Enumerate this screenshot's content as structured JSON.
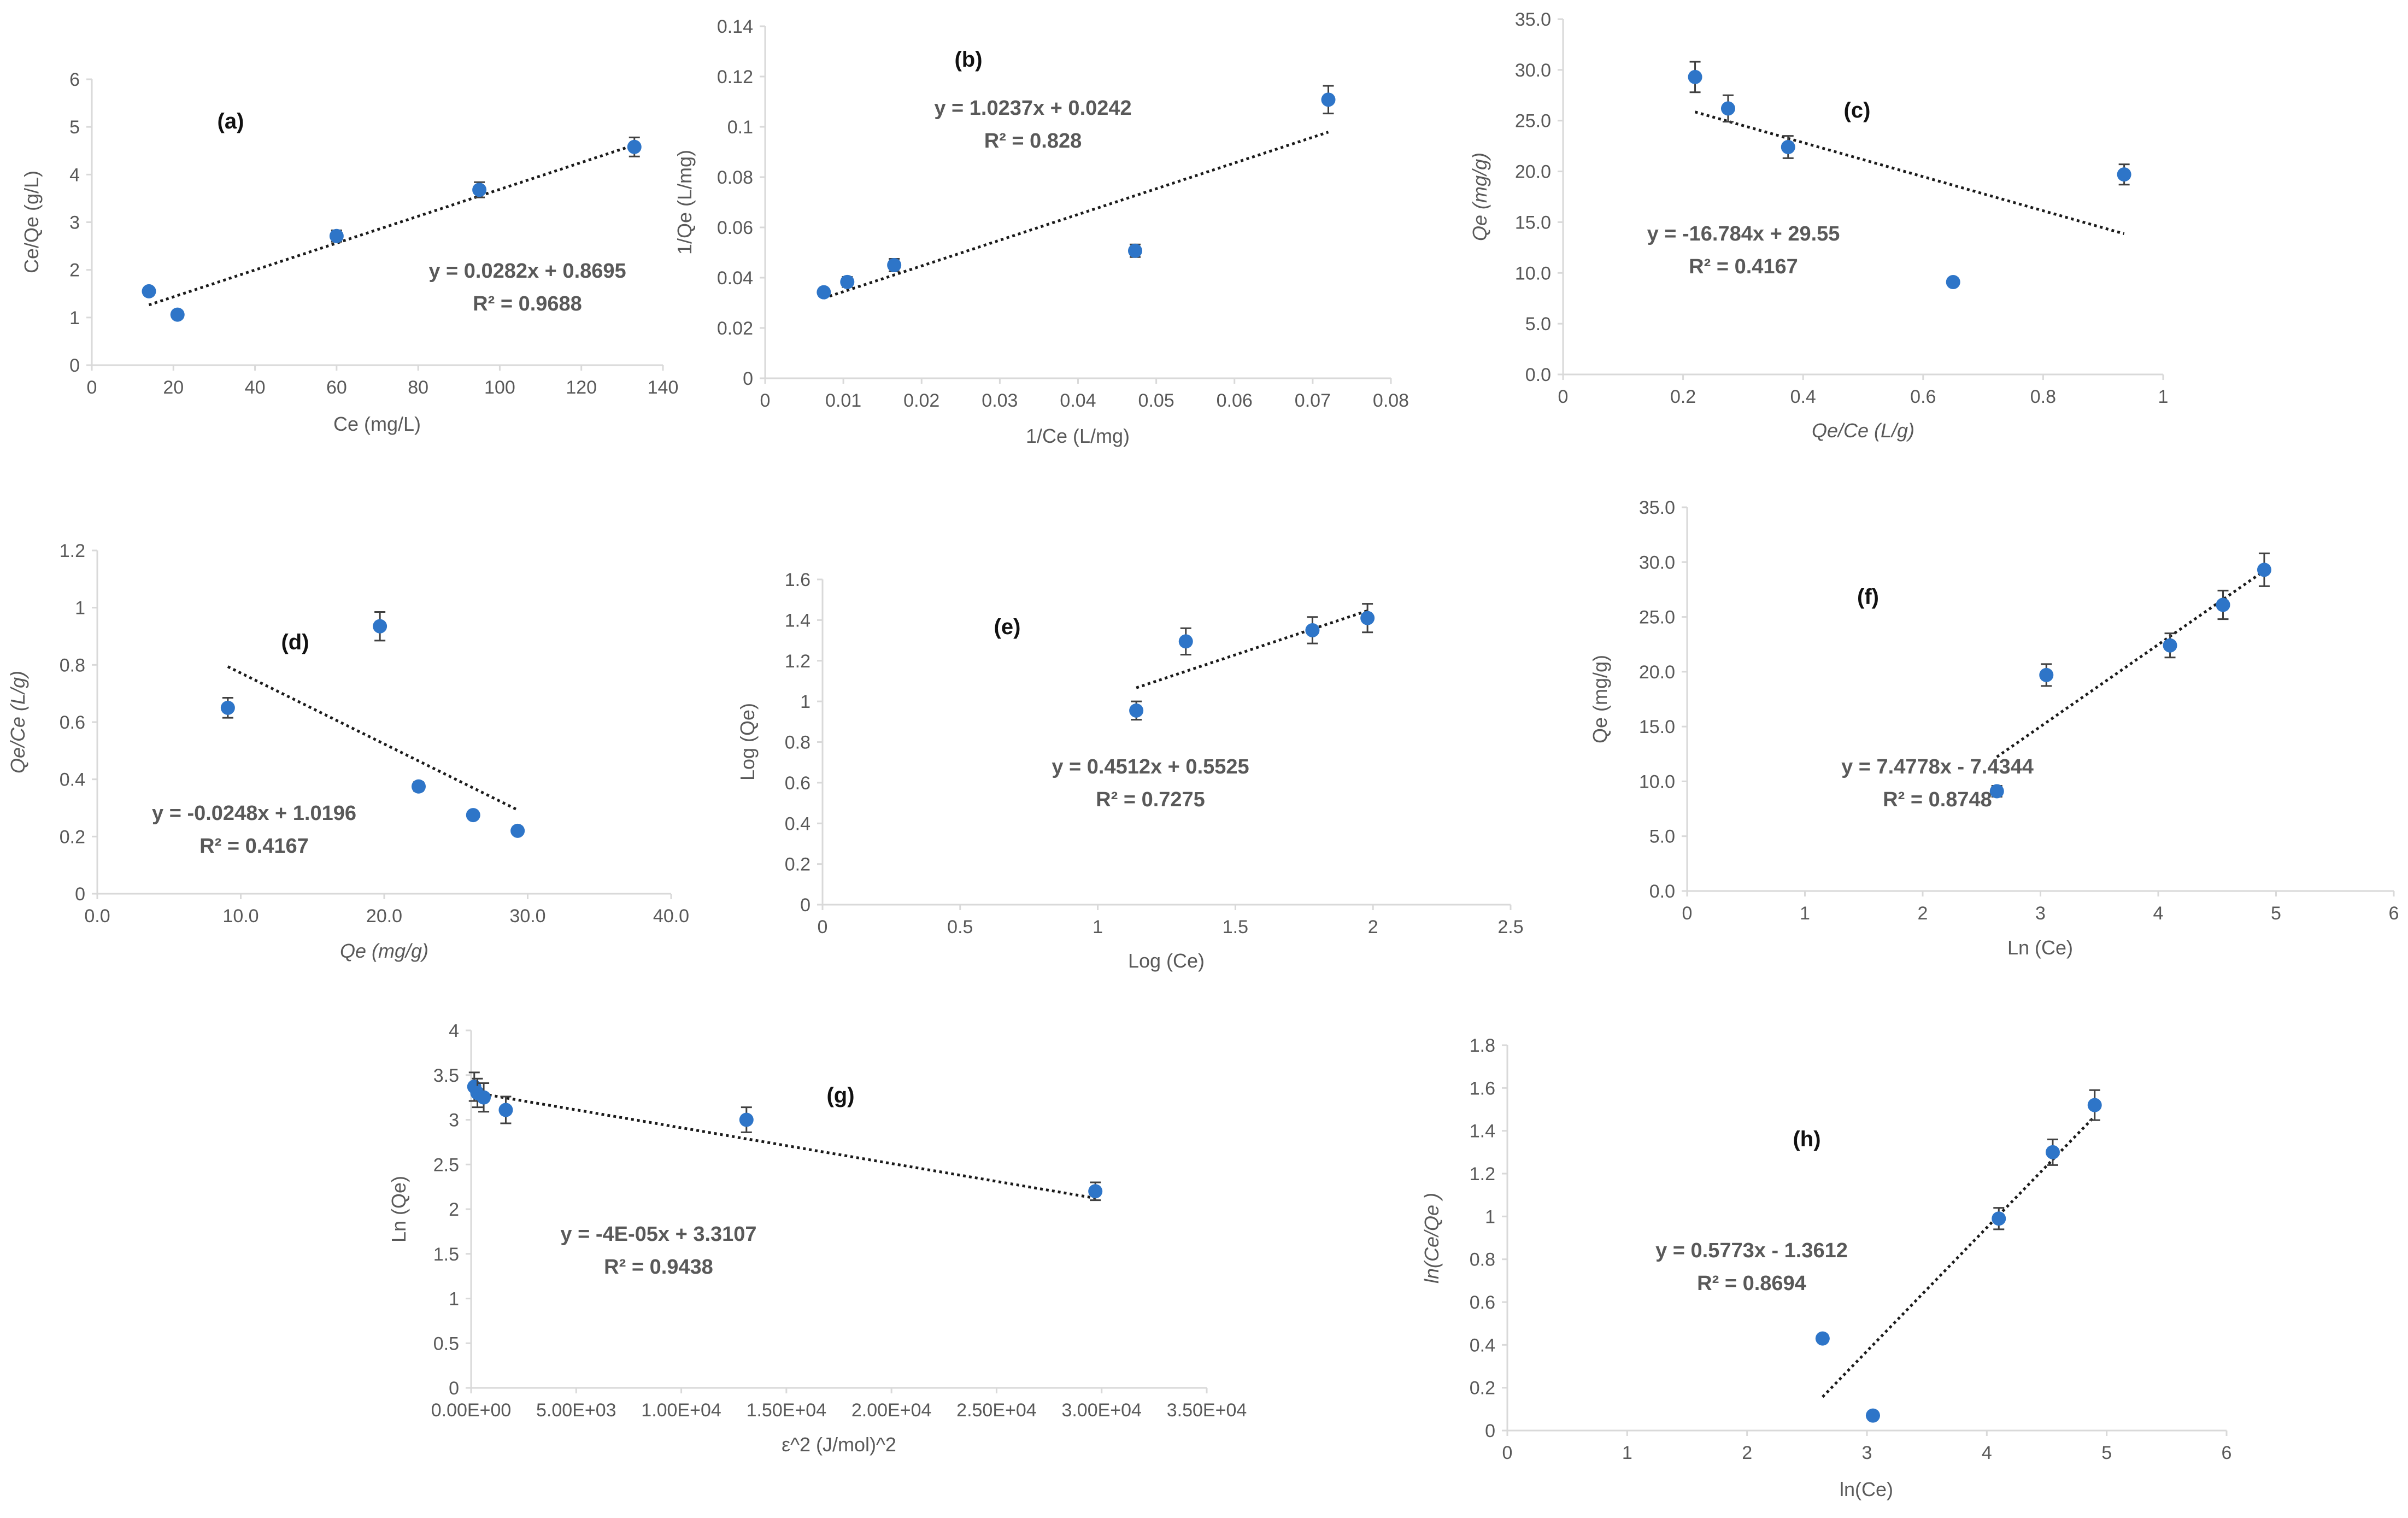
{
  "chart_data": [
    {
      "id": "a",
      "type": "scatter",
      "panel_label": "(a)",
      "xlabel": "Ce (mg/L)",
      "ylabel": "Ce/Qe (g/L)",
      "xlim": [
        0,
        140
      ],
      "ylim": [
        0,
        6
      ],
      "xticks": [
        0,
        20,
        40,
        60,
        80,
        100,
        120,
        140
      ],
      "xtick_labels": [
        "0",
        "20",
        "40",
        "60",
        "80",
        "100",
        "120",
        "140"
      ],
      "yticks": [
        0,
        1,
        2,
        3,
        4,
        5,
        6
      ],
      "ytick_labels": [
        "0",
        "1",
        "2",
        "3",
        "4",
        "5",
        "6"
      ],
      "points": [
        {
          "x": 14,
          "y": 1.55,
          "err": 0
        },
        {
          "x": 21,
          "y": 1.06,
          "err": 0
        },
        {
          "x": 60,
          "y": 2.71,
          "err": 0.12
        },
        {
          "x": 95,
          "y": 3.68,
          "err": 0.16
        },
        {
          "x": 133,
          "y": 4.58,
          "err": 0.2
        }
      ],
      "trendline": {
        "slope": 0.0282,
        "intercept": 0.8695,
        "x_range": [
          14,
          133
        ]
      },
      "equation": "y = 0.0282x + 0.8695",
      "r2": "R² = 0.9688"
    },
    {
      "id": "b",
      "type": "scatter",
      "panel_label": "(b)",
      "xlabel": "1/Ce (L/mg)",
      "ylabel": "1/Qe (L/mg)",
      "xlim": [
        0,
        0.08
      ],
      "ylim": [
        0,
        0.14
      ],
      "xticks": [
        0,
        0.01,
        0.02,
        0.03,
        0.04,
        0.05,
        0.06,
        0.07,
        0.08
      ],
      "xtick_labels": [
        "0",
        "0.01",
        "0.02",
        "0.03",
        "0.04",
        "0.05",
        "0.06",
        "0.07",
        "0.08"
      ],
      "yticks": [
        0,
        0.02,
        0.04,
        0.06,
        0.08,
        0.1,
        0.12,
        0.14
      ],
      "ytick_labels": [
        "0",
        "0.02",
        "0.04",
        "0.06",
        "0.08",
        "0.1",
        "0.12",
        "0.14"
      ],
      "points": [
        {
          "x": 0.0075,
          "y": 0.0342,
          "err": 0.0015
        },
        {
          "x": 0.0105,
          "y": 0.0383,
          "err": 0.002
        },
        {
          "x": 0.0165,
          "y": 0.045,
          "err": 0.0025
        },
        {
          "x": 0.0473,
          "y": 0.0507,
          "err": 0.0025
        },
        {
          "x": 0.072,
          "y": 0.1108,
          "err": 0.0055
        }
      ],
      "trendline": {
        "slope": 1.0237,
        "intercept": 0.0242,
        "x_range": [
          0.0075,
          0.072
        ]
      },
      "equation": "y = 1.0237x + 0.0242",
      "r2": "R² = 0.828"
    },
    {
      "id": "c",
      "type": "scatter",
      "panel_label": "(c)",
      "xlabel": "Qe/Ce  (L/g)",
      "ylabel": "Qe (mg/g)",
      "xlim": [
        0,
        1
      ],
      "ylim": [
        0,
        35
      ],
      "xticks": [
        0,
        0.2,
        0.4,
        0.6,
        0.8,
        1
      ],
      "xtick_labels": [
        "0",
        "0.2",
        "0.4",
        "0.6",
        "0.8",
        "1"
      ],
      "yticks": [
        0,
        5,
        10,
        15,
        20,
        25,
        30,
        35
      ],
      "ytick_labels": [
        "0.0",
        "5.0",
        "10.0",
        "15.0",
        "20.0",
        "25.0",
        "30.0",
        "35.0"
      ],
      "points": [
        {
          "x": 0.22,
          "y": 29.3,
          "err": 1.5
        },
        {
          "x": 0.275,
          "y": 26.2,
          "err": 1.3
        },
        {
          "x": 0.375,
          "y": 22.4,
          "err": 1.1
        },
        {
          "x": 0.65,
          "y": 9.1,
          "err": 0
        },
        {
          "x": 0.935,
          "y": 19.7,
          "err": 1.0
        }
      ],
      "trendline": {
        "slope": -16.784,
        "intercept": 29.55,
        "x_range": [
          0.22,
          0.935
        ]
      },
      "equation": "y = -16.784x + 29.55",
      "r2": "R² = 0.4167"
    },
    {
      "id": "d",
      "type": "scatter",
      "panel_label": "(d)",
      "xlabel": "Qe   (mg/g)",
      "ylabel": "Qe/Ce (L/g)",
      "xlim": [
        0,
        40
      ],
      "ylim": [
        0,
        1.2
      ],
      "xticks": [
        0,
        10,
        20,
        30,
        40
      ],
      "xtick_labels": [
        "0.0",
        "10.0",
        "20.0",
        "30.0",
        "40.0"
      ],
      "yticks": [
        0,
        0.2,
        0.4,
        0.6,
        0.8,
        1,
        1.2
      ],
      "ytick_labels": [
        "0",
        "0.2",
        "0.4",
        "0.6",
        "0.8",
        "1",
        "1.2"
      ],
      "points": [
        {
          "x": 9.1,
          "y": 0.65,
          "err": 0.035
        },
        {
          "x": 19.7,
          "y": 0.935,
          "err": 0.05
        },
        {
          "x": 22.4,
          "y": 0.375,
          "err": 0.015
        },
        {
          "x": 26.2,
          "y": 0.275,
          "err": 0
        },
        {
          "x": 29.3,
          "y": 0.22,
          "err": 0
        }
      ],
      "trendline": {
        "slope": -0.0248,
        "intercept": 1.0196,
        "x_range": [
          9.1,
          29.3
        ]
      },
      "equation": "y = -0.0248x + 1.0196",
      "r2": "R² = 0.4167"
    },
    {
      "id": "e",
      "type": "scatter",
      "panel_label": "(e)",
      "xlabel": "Log (Ce)",
      "ylabel": "Log (Qe)",
      "xlim": [
        0,
        2.5
      ],
      "ylim": [
        0,
        1.6
      ],
      "xticks": [
        0,
        0.5,
        1,
        1.5,
        2,
        2.5
      ],
      "xtick_labels": [
        "0",
        "0.5",
        "1",
        "1.5",
        "2",
        "2.5"
      ],
      "yticks": [
        0,
        0.2,
        0.4,
        0.6,
        0.8,
        1,
        1.2,
        1.4,
        1.6
      ],
      "ytick_labels": [
        "0",
        "0.2",
        "0.4",
        "0.6",
        "0.8",
        "1",
        "1.2",
        "1.4",
        "1.6"
      ],
      "points": [
        {
          "x": 1.14,
          "y": 0.955,
          "err": 0.045
        },
        {
          "x": 1.32,
          "y": 1.295,
          "err": 0.065
        },
        {
          "x": 1.78,
          "y": 1.35,
          "err": 0.065
        },
        {
          "x": 1.98,
          "y": 1.41,
          "err": 0.07
        }
      ],
      "trendline": {
        "slope": 0.4512,
        "intercept": 0.5525,
        "x_range": [
          1.14,
          1.98
        ]
      },
      "equation": "y = 0.4512x + 0.5525",
      "r2": "R² = 0.7275"
    },
    {
      "id": "f",
      "type": "scatter",
      "panel_label": "(f)",
      "xlabel": "Ln (Ce)",
      "ylabel": "Qe (mg/g)",
      "xlim": [
        0,
        6
      ],
      "ylim": [
        0,
        35
      ],
      "xticks": [
        0,
        1,
        2,
        3,
        4,
        5,
        6
      ],
      "xtick_labels": [
        "0",
        "1",
        "2",
        "3",
        "4",
        "5",
        "6"
      ],
      "yticks": [
        0,
        5,
        10,
        15,
        20,
        25,
        30,
        35
      ],
      "ytick_labels": [
        "0.0",
        "5.0",
        "10.0",
        "15.0",
        "20.0",
        "25.0",
        "30.0",
        "35.0"
      ],
      "points": [
        {
          "x": 2.63,
          "y": 9.1,
          "err": 0.5
        },
        {
          "x": 3.05,
          "y": 19.7,
          "err": 1.0
        },
        {
          "x": 4.1,
          "y": 22.4,
          "err": 1.1
        },
        {
          "x": 4.55,
          "y": 26.1,
          "err": 1.3
        },
        {
          "x": 4.9,
          "y": 29.3,
          "err": 1.5
        }
      ],
      "trendline": {
        "slope": 7.4778,
        "intercept": -7.4344,
        "x_range": [
          2.63,
          4.9
        ]
      },
      "equation": "y = 7.4778x - 7.4344",
      "r2": "R² = 0.8748"
    },
    {
      "id": "g",
      "type": "scatter",
      "panel_label": "(g)",
      "xlabel": "ε^2 (J/mol)^2",
      "ylabel": "Ln (Qe)",
      "xlim": [
        0,
        35000
      ],
      "ylim": [
        0,
        4
      ],
      "xticks": [
        0,
        5000,
        10000,
        15000,
        20000,
        25000,
        30000,
        35000
      ],
      "xtick_labels": [
        "0.00E+00",
        "5.00E+03",
        "1.00E+04",
        "1.50E+04",
        "2.00E+04",
        "2.50E+04",
        "3.00E+04",
        "3.50E+04"
      ],
      "yticks": [
        0,
        0.5,
        1,
        1.5,
        2,
        2.5,
        3,
        3.5,
        4
      ],
      "ytick_labels": [
        "0",
        "0.5",
        "1",
        "1.5",
        "2",
        "2.5",
        "3",
        "3.5",
        "4"
      ],
      "points": [
        {
          "x": 150,
          "y": 3.37,
          "err": 0.16
        },
        {
          "x": 300,
          "y": 3.3,
          "err": 0.16
        },
        {
          "x": 600,
          "y": 3.25,
          "err": 0.16
        },
        {
          "x": 1650,
          "y": 3.11,
          "err": 0.15
        },
        {
          "x": 13100,
          "y": 3.0,
          "err": 0.14
        },
        {
          "x": 29700,
          "y": 2.2,
          "err": 0.1
        }
      ],
      "trendline": {
        "slope": -4e-05,
        "intercept": 3.3107,
        "x_range": [
          0,
          29700
        ]
      },
      "equation": "y = -4E-05x + 3.3107",
      "r2": "R² = 0.9438"
    },
    {
      "id": "h",
      "type": "scatter",
      "panel_label": "(h)",
      "xlabel": "ln(Ce)",
      "ylabel": "ln(Ce/Qe )",
      "xlim": [
        0,
        6
      ],
      "ylim": [
        0,
        1.8
      ],
      "xticks": [
        0,
        1,
        2,
        3,
        4,
        5,
        6
      ],
      "xtick_labels": [
        "0",
        "1",
        "2",
        "3",
        "4",
        "5",
        "6"
      ],
      "yticks": [
        0,
        0.2,
        0.4,
        0.6,
        0.8,
        1,
        1.2,
        1.4,
        1.6,
        1.8
      ],
      "ytick_labels": [
        "0",
        "0.2",
        "0.4",
        "0.6",
        "0.8",
        "1",
        "1.2",
        "1.4",
        "1.6",
        "1.8"
      ],
      "points": [
        {
          "x": 2.63,
          "y": 0.43,
          "err": 0
        },
        {
          "x": 3.05,
          "y": 0.07,
          "err": 0
        },
        {
          "x": 4.1,
          "y": 0.99,
          "err": 0.05
        },
        {
          "x": 4.55,
          "y": 1.3,
          "err": 0.06
        },
        {
          "x": 4.9,
          "y": 1.52,
          "err": 0.07
        }
      ],
      "trendline": {
        "slope": 0.5773,
        "intercept": -1.3612,
        "x_range": [
          2.63,
          4.9
        ]
      },
      "equation": "y = 0.5773x - 1.3612",
      "r2": "R² = 0.8694"
    }
  ]
}
